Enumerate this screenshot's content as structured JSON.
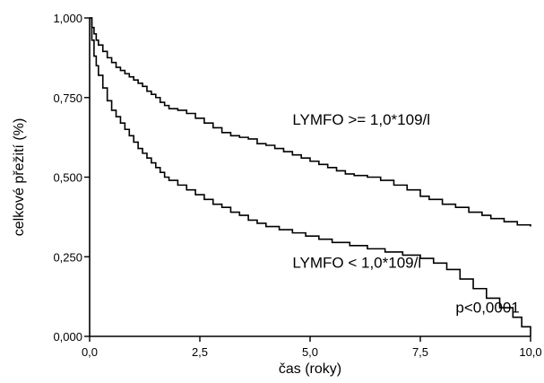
{
  "chart_data": {
    "type": "line",
    "title": "",
    "xlabel": "čas (roky)",
    "ylabel": "celkové přežití (%)",
    "xlim": [
      0,
      10
    ],
    "ylim": [
      0,
      1
    ],
    "x_ticks": [
      0,
      2.5,
      5,
      7.5,
      10
    ],
    "x_tick_labels": [
      "0,0",
      "2,5",
      "5,0",
      "7,5",
      "10,0"
    ],
    "y_ticks": [
      0,
      0.25,
      0.5,
      0.75,
      1
    ],
    "y_tick_labels": [
      "0,000",
      "0,250",
      "0,500",
      "0,750",
      "1,000"
    ],
    "grid": false,
    "series": [
      {
        "name": "LYMFO >= 1,0*109/l",
        "step": true,
        "points": [
          [
            0,
            1.0
          ],
          [
            0.05,
            0.97
          ],
          [
            0.1,
            0.95
          ],
          [
            0.15,
            0.93
          ],
          [
            0.2,
            0.915
          ],
          [
            0.3,
            0.895
          ],
          [
            0.4,
            0.875
          ],
          [
            0.5,
            0.86
          ],
          [
            0.6,
            0.845
          ],
          [
            0.7,
            0.835
          ],
          [
            0.8,
            0.825
          ],
          [
            0.9,
            0.815
          ],
          [
            1.0,
            0.805
          ],
          [
            1.1,
            0.795
          ],
          [
            1.2,
            0.785
          ],
          [
            1.3,
            0.77
          ],
          [
            1.4,
            0.76
          ],
          [
            1.5,
            0.75
          ],
          [
            1.6,
            0.735
          ],
          [
            1.7,
            0.725
          ],
          [
            1.8,
            0.715
          ],
          [
            2.0,
            0.71
          ],
          [
            2.2,
            0.7
          ],
          [
            2.4,
            0.685
          ],
          [
            2.6,
            0.67
          ],
          [
            2.8,
            0.655
          ],
          [
            3.0,
            0.64
          ],
          [
            3.2,
            0.63
          ],
          [
            3.4,
            0.625
          ],
          [
            3.6,
            0.62
          ],
          [
            3.8,
            0.605
          ],
          [
            4.0,
            0.6
          ],
          [
            4.2,
            0.59
          ],
          [
            4.4,
            0.58
          ],
          [
            4.6,
            0.57
          ],
          [
            4.8,
            0.56
          ],
          [
            5.0,
            0.55
          ],
          [
            5.2,
            0.54
          ],
          [
            5.4,
            0.53
          ],
          [
            5.6,
            0.52
          ],
          [
            5.8,
            0.51
          ],
          [
            6.0,
            0.505
          ],
          [
            6.3,
            0.5
          ],
          [
            6.6,
            0.49
          ],
          [
            6.9,
            0.475
          ],
          [
            7.2,
            0.46
          ],
          [
            7.5,
            0.44
          ],
          [
            7.7,
            0.43
          ],
          [
            8.0,
            0.415
          ],
          [
            8.3,
            0.405
          ],
          [
            8.6,
            0.39
          ],
          [
            8.9,
            0.38
          ],
          [
            9.1,
            0.37
          ],
          [
            9.4,
            0.36
          ],
          [
            9.7,
            0.35
          ],
          [
            10.0,
            0.345
          ]
        ]
      },
      {
        "name": "LYMFO < 1,0*109/l",
        "step": true,
        "points": [
          [
            0,
            1.0
          ],
          [
            0.05,
            0.93
          ],
          [
            0.1,
            0.88
          ],
          [
            0.15,
            0.85
          ],
          [
            0.2,
            0.82
          ],
          [
            0.3,
            0.78
          ],
          [
            0.4,
            0.74
          ],
          [
            0.5,
            0.71
          ],
          [
            0.6,
            0.69
          ],
          [
            0.7,
            0.67
          ],
          [
            0.8,
            0.65
          ],
          [
            0.9,
            0.63
          ],
          [
            1.0,
            0.61
          ],
          [
            1.1,
            0.59
          ],
          [
            1.2,
            0.575
          ],
          [
            1.3,
            0.56
          ],
          [
            1.4,
            0.545
          ],
          [
            1.5,
            0.53
          ],
          [
            1.6,
            0.515
          ],
          [
            1.7,
            0.5
          ],
          [
            1.8,
            0.49
          ],
          [
            2.0,
            0.475
          ],
          [
            2.2,
            0.46
          ],
          [
            2.4,
            0.445
          ],
          [
            2.6,
            0.43
          ],
          [
            2.8,
            0.415
          ],
          [
            3.0,
            0.405
          ],
          [
            3.2,
            0.39
          ],
          [
            3.4,
            0.38
          ],
          [
            3.6,
            0.365
          ],
          [
            3.8,
            0.355
          ],
          [
            4.0,
            0.345
          ],
          [
            4.3,
            0.335
          ],
          [
            4.6,
            0.325
          ],
          [
            4.9,
            0.315
          ],
          [
            5.2,
            0.305
          ],
          [
            5.5,
            0.295
          ],
          [
            5.9,
            0.285
          ],
          [
            6.3,
            0.275
          ],
          [
            6.7,
            0.265
          ],
          [
            7.1,
            0.255
          ],
          [
            7.5,
            0.245
          ],
          [
            7.8,
            0.23
          ],
          [
            8.1,
            0.21
          ],
          [
            8.4,
            0.18
          ],
          [
            8.7,
            0.15
          ],
          [
            9.0,
            0.12
          ],
          [
            9.3,
            0.09
          ],
          [
            9.6,
            0.06
          ],
          [
            9.8,
            0.03
          ],
          [
            10.0,
            0.0
          ]
        ]
      }
    ],
    "annotations": [
      {
        "text": "LYMFO >= 1,0*109/l",
        "x": 4.6,
        "y": 0.665
      },
      {
        "text": "LYMFO < 1,0*109/l",
        "x": 4.6,
        "y": 0.215
      },
      {
        "text": "p<0,0001",
        "x": 8.3,
        "y": 0.075
      }
    ]
  }
}
